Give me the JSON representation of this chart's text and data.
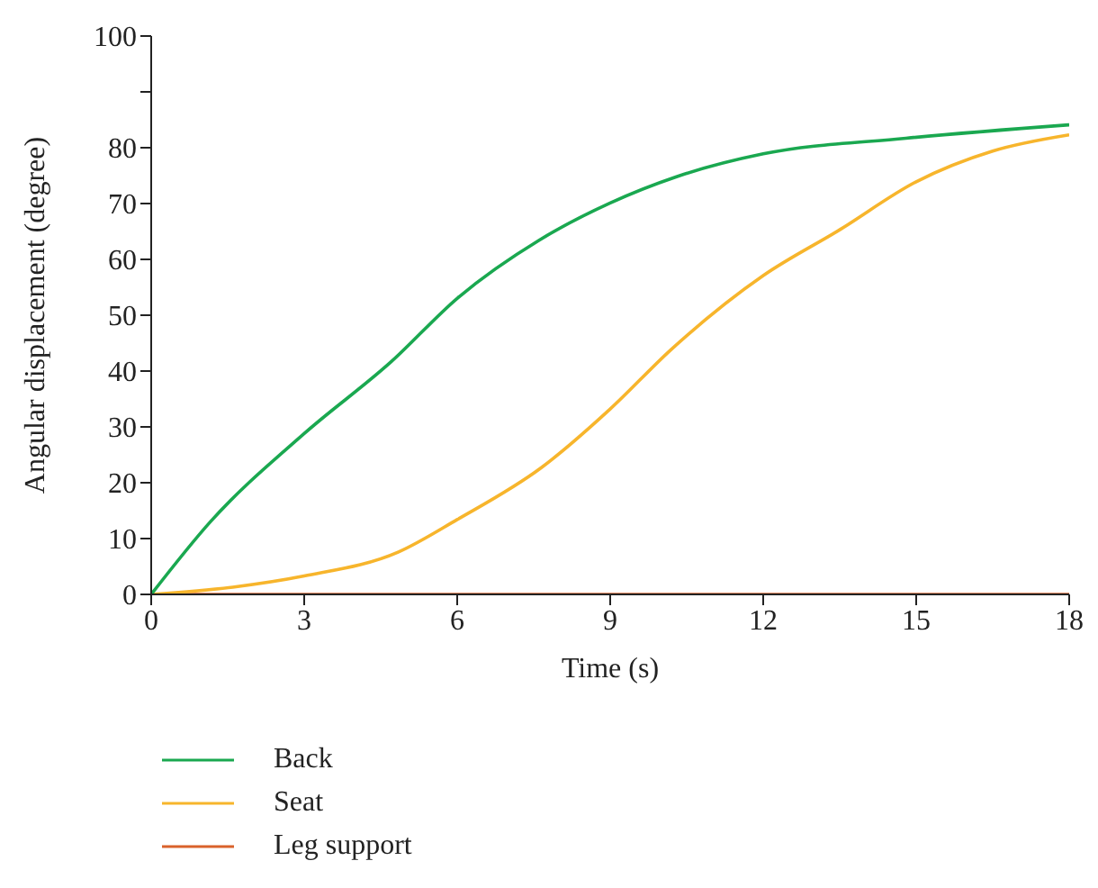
{
  "chart_data": {
    "type": "line",
    "xlabel": "Time (s)",
    "ylabel": "Angular displacement (degree)",
    "xlim": [
      0,
      18
    ],
    "xticks": [
      0,
      3,
      6,
      9,
      12,
      15,
      18
    ],
    "ylim": [
      0,
      100
    ],
    "yticks": [
      0,
      10,
      20,
      30,
      40,
      50,
      60,
      70,
      80,
      {
        "value": 90,
        "label": null
      },
      100
    ],
    "grid": false,
    "legend": "bottom",
    "marker": "none",
    "line_style": "solid",
    "series": [
      {
        "name": "Back",
        "color": "#1aa850",
        "x": [
          0,
          1.16,
          3.0,
          4.71,
          6.01,
          7.6,
          9.0,
          10.3,
          12.0,
          14.8,
          18
        ],
        "values": [
          0,
          13.0,
          28.8,
          41.7,
          53.1,
          63.4,
          70.1,
          74.8,
          78.9,
          81.7,
          84.1
        ]
      },
      {
        "name": "Seat",
        "color": "#f7b52c",
        "x": [
          0,
          1.6,
          3.0,
          4.85,
          6.0,
          7.65,
          9.0,
          10.2,
          12.0,
          13.5,
          15.0,
          16.5,
          18
        ],
        "values": [
          0,
          1.3,
          3.3,
          7.6,
          13.4,
          22.7,
          33.2,
          43.9,
          57.1,
          65.3,
          73.9,
          79.4,
          82.3
        ]
      },
      {
        "name": "Leg support",
        "color": "#d9622b",
        "x": [
          0,
          18
        ],
        "values": [
          0,
          0
        ]
      }
    ]
  }
}
